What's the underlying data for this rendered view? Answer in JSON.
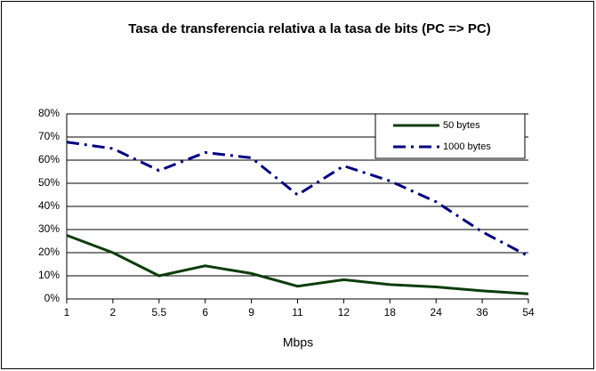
{
  "chart_data": {
    "type": "line",
    "title": "Tasa de transferencia relativa a la tasa de bits (PC => PC)",
    "x_label": "Mbps",
    "categories": [
      "1",
      "2",
      "5.5",
      "6",
      "9",
      "11",
      "12",
      "18",
      "24",
      "36",
      "54"
    ],
    "series": [
      {
        "name": "50 bytes",
        "color": "#0b3d0b",
        "dash": "solid",
        "values": [
          27.5,
          20,
          10,
          14.3,
          11,
          5.5,
          8.3,
          6.2,
          5.2,
          3.5,
          2.2
        ]
      },
      {
        "name": "1000 bytes",
        "color": "#000080",
        "dash": "dashdot",
        "values": [
          67.8,
          65,
          55.5,
          63.3,
          61,
          45,
          57.5,
          51,
          42,
          29,
          18.5
        ]
      }
    ],
    "ylim": [
      0,
      80
    ],
    "yticks": [
      {
        "value": 0,
        "label": "0%"
      },
      {
        "value": 10,
        "label": "10%"
      },
      {
        "value": 20,
        "label": "20%"
      },
      {
        "value": 30,
        "label": "30%"
      },
      {
        "value": 40,
        "label": "40%"
      },
      {
        "value": 50,
        "label": "50%"
      },
      {
        "value": 60,
        "label": "60%"
      },
      {
        "value": 70,
        "label": "70%"
      },
      {
        "value": 80,
        "label": "80%"
      }
    ],
    "grid": true,
    "legend_position": "upper right"
  }
}
